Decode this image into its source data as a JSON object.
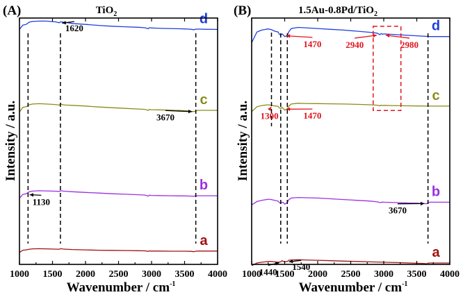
{
  "chart_data": [
    {
      "type": "line",
      "panel": "(A)",
      "title": "TiO2",
      "title_main": "TiO",
      "title_sub": "2",
      "xlabel_main": "Wavenumber / cm",
      "xlabel_sup": "-1",
      "ylabel": "Intensity / a.u.",
      "xlim": [
        1000,
        4000
      ],
      "xticks": [
        "1000",
        "1500",
        "2000",
        "2500",
        "3000",
        "3500",
        "4000"
      ],
      "grid": false,
      "series": [
        {
          "name": "d",
          "color": "#1f3fdc",
          "x": [
            1000,
            1050,
            1100,
            1150,
            1200,
            1300,
            1400,
            1500,
            1550,
            1600,
            1610,
            1620,
            1640,
            1700,
            1800,
            2000,
            2200,
            2400,
            2600,
            2800,
            2900,
            2950,
            2970,
            2990,
            3050,
            3200,
            3400,
            3500,
            3550,
            3600,
            3640,
            3660,
            3700,
            3800,
            4000
          ],
          "y": [
            0.7,
            0.83,
            0.85,
            0.92,
            0.94,
            0.95,
            0.95,
            0.935,
            0.925,
            0.9,
            0.91,
            0.93,
            0.925,
            0.91,
            0.88,
            0.85,
            0.82,
            0.795,
            0.78,
            0.765,
            0.75,
            0.72,
            0.755,
            0.745,
            0.74,
            0.73,
            0.72,
            0.715,
            0.71,
            0.705,
            0.69,
            0.705,
            0.71,
            0.705,
            0.7
          ]
        },
        {
          "name": "c",
          "color": "#8b8b1a",
          "x": [
            1000,
            1050,
            1100,
            1150,
            1200,
            1300,
            1400,
            1500,
            1560,
            1600,
            1630,
            1650,
            1700,
            1800,
            2000,
            2200,
            2400,
            2600,
            2800,
            2900,
            2950,
            2970,
            2990,
            3100,
            3300,
            3450,
            3550,
            3600,
            3640,
            3670,
            3700,
            3800,
            4000
          ],
          "y": [
            0.22,
            0.36,
            0.38,
            0.44,
            0.46,
            0.47,
            0.46,
            0.45,
            0.44,
            0.43,
            0.46,
            0.44,
            0.43,
            0.42,
            0.4,
            0.37,
            0.35,
            0.33,
            0.31,
            0.3,
            0.27,
            0.3,
            0.29,
            0.285,
            0.275,
            0.265,
            0.255,
            0.24,
            0.235,
            0.25,
            0.27,
            0.27,
            0.27
          ]
        },
        {
          "name": "b",
          "color": "#9b30e0",
          "x": [
            1000,
            1050,
            1100,
            1150,
            1200,
            1300,
            1400,
            1500,
            1560,
            1600,
            1630,
            1660,
            1700,
            1800,
            2000,
            2200,
            2400,
            2600,
            2800,
            2900,
            2950,
            2970,
            2990,
            3100,
            3300,
            3500,
            3600,
            3640,
            3670,
            3700,
            3800,
            4000
          ],
          "y": [
            -0.28,
            -0.17,
            -0.15,
            -0.09,
            -0.07,
            -0.06,
            -0.065,
            -0.07,
            -0.075,
            -0.08,
            -0.06,
            -0.07,
            -0.075,
            -0.09,
            -0.11,
            -0.13,
            -0.15,
            -0.165,
            -0.18,
            -0.19,
            -0.22,
            -0.19,
            -0.2,
            -0.205,
            -0.21,
            -0.215,
            -0.22,
            -0.225,
            -0.215,
            -0.21,
            -0.21,
            -0.21
          ]
        },
        {
          "name": "a",
          "color": "#a01010",
          "x": [
            1000,
            1050,
            1100,
            1150,
            1200,
            1300,
            1400,
            1500,
            1560,
            1600,
            1630,
            1660,
            1700,
            1800,
            2000,
            2200,
            2400,
            2600,
            2800,
            2900,
            2950,
            2970,
            2990,
            3100,
            3300,
            3500,
            3600,
            3640,
            3670,
            3700,
            3800,
            4000
          ],
          "y": [
            -0.79,
            -0.72,
            -0.71,
            -0.69,
            -0.68,
            -0.675,
            -0.68,
            -0.685,
            -0.69,
            -0.69,
            -0.675,
            -0.685,
            -0.69,
            -0.7,
            -0.71,
            -0.72,
            -0.725,
            -0.73,
            -0.735,
            -0.74,
            -0.755,
            -0.74,
            -0.745,
            -0.745,
            -0.75,
            -0.75,
            -0.755,
            -0.765,
            -0.75,
            -0.745,
            -0.745,
            -0.745
          ]
        }
      ],
      "dashed_lines_x": [
        1130,
        1620,
        3670
      ],
      "annotations": [
        {
          "text": "1620",
          "color": "#000000",
          "x": 1620,
          "y": 0.9,
          "text_x": 1830,
          "text_y": 0.81
        },
        {
          "text": "3670",
          "color": "#000000",
          "x": 3670,
          "y": 0.245,
          "text_x": 3210,
          "text_y": 0.14
        },
        {
          "text": "1130",
          "color": "#000000",
          "x": 1130,
          "y": -0.16,
          "text_x": 1330,
          "text_y": -0.32
        }
      ]
    },
    {
      "type": "line",
      "panel": "(B)",
      "title": "1.5Au-0.8Pd/TiO2",
      "title_main": "1.5Au-0.8Pd/TiO",
      "title_sub": "2",
      "xlabel_main": "Wavenumber / cm",
      "xlabel_sup": "-1",
      "ylabel": "Intensity / a.u.",
      "xlim": [
        1000,
        4000
      ],
      "xticks": [
        "1000",
        "1500",
        "2000",
        "2500",
        "3000",
        "3500",
        "4000"
      ],
      "grid": false,
      "series": [
        {
          "name": "d",
          "color": "#1f3fdc",
          "x": [
            1000,
            1080,
            1150,
            1250,
            1300,
            1350,
            1400,
            1420,
            1440,
            1460,
            1480,
            1500,
            1540,
            1560,
            1600,
            1700,
            1800,
            2000,
            2200,
            2400,
            2600,
            2800,
            2900,
            2940,
            2960,
            2980,
            3000,
            3100,
            3300,
            3500,
            3700,
            3800,
            4000
          ],
          "y": [
            0.5,
            0.78,
            0.83,
            0.86,
            0.84,
            0.8,
            0.78,
            0.72,
            0.7,
            0.73,
            0.7,
            0.66,
            0.69,
            0.78,
            0.87,
            0.9,
            0.89,
            0.87,
            0.85,
            0.83,
            0.8,
            0.77,
            0.75,
            0.71,
            0.74,
            0.72,
            0.73,
            0.72,
            0.7,
            0.68,
            0.66,
            0.66,
            0.66
          ]
        },
        {
          "name": "c",
          "color": "#8b8b1a",
          "x": [
            1000,
            1080,
            1150,
            1250,
            1300,
            1350,
            1400,
            1420,
            1440,
            1460,
            1480,
            1500,
            1540,
            1560,
            1600,
            1700,
            1800,
            2000,
            2200,
            2400,
            2600,
            2800,
            2900,
            2940,
            2960,
            2980,
            3000,
            3100,
            3300,
            3500,
            3700,
            3800,
            4000
          ],
          "y": [
            0.02,
            0.15,
            0.18,
            0.2,
            0.19,
            0.17,
            0.16,
            0.12,
            0.1,
            0.13,
            0.1,
            0.06,
            0.09,
            0.16,
            0.22,
            0.24,
            0.235,
            0.23,
            0.225,
            0.22,
            0.21,
            0.2,
            0.19,
            0.175,
            0.19,
            0.18,
            0.185,
            0.18,
            0.175,
            0.17,
            0.165,
            0.165,
            0.165
          ]
        },
        {
          "name": "b",
          "color": "#9b30e0",
          "x": [
            1000,
            1080,
            1150,
            1250,
            1300,
            1350,
            1400,
            1420,
            1440,
            1460,
            1480,
            1500,
            1540,
            1560,
            1600,
            1700,
            1800,
            2000,
            2200,
            2400,
            2600,
            2800,
            2900,
            2950,
            2980,
            3000,
            3200,
            3400,
            3500,
            3600,
            3650,
            3670,
            3700,
            3800,
            4000
          ],
          "y": [
            -0.46,
            -0.37,
            -0.34,
            -0.31,
            -0.32,
            -0.34,
            -0.36,
            -0.4,
            -0.42,
            -0.39,
            -0.4,
            -0.44,
            -0.4,
            -0.33,
            -0.28,
            -0.265,
            -0.27,
            -0.28,
            -0.3,
            -0.32,
            -0.34,
            -0.36,
            -0.38,
            -0.4,
            -0.385,
            -0.39,
            -0.4,
            -0.41,
            -0.415,
            -0.425,
            -0.43,
            -0.4,
            -0.39,
            -0.39,
            -0.39
          ]
        },
        {
          "name": "a",
          "color": "#a01010",
          "x": [
            1000,
            1080,
            1150,
            1250,
            1300,
            1350,
            1400,
            1440,
            1460,
            1480,
            1500,
            1540,
            1560,
            1600,
            1700,
            1800,
            2000,
            2200,
            2400,
            2600,
            2800,
            3000,
            3200,
            3400,
            3600,
            3650,
            3670,
            3700,
            3800,
            4000
          ],
          "y": [
            -0.87,
            -0.8,
            -0.78,
            -0.76,
            -0.76,
            -0.77,
            -0.78,
            -0.77,
            -0.74,
            -0.76,
            -0.77,
            -0.76,
            -0.73,
            -0.72,
            -0.715,
            -0.72,
            -0.73,
            -0.74,
            -0.75,
            -0.76,
            -0.77,
            -0.78,
            -0.79,
            -0.8,
            -0.81,
            -0.82,
            -0.805,
            -0.8,
            -0.8,
            -0.8
          ]
        }
      ],
      "dashed_lines_x": [
        1440,
        1540,
        3670
      ],
      "dashed_lines_x_red": [
        1300
      ],
      "dashed_box_red": {
        "x": [
          2840,
          3260
        ],
        "y": [
          0.61,
          0.93
        ]
      },
      "annotations": [
        {
          "text": "1470",
          "color": "#e0141e",
          "x": 1470,
          "y": 0.7,
          "text_x": 1920,
          "text_y": 0.53
        },
        {
          "text": "2940",
          "color": "#e0141e",
          "x": 2940,
          "y": 0.72,
          "text_x": 2560,
          "text_y": 0.51
        },
        {
          "text": "2980",
          "color": "#e0141e",
          "x": 2980,
          "y": 0.72,
          "text_x": 3390,
          "text_y": 0.51
        },
        {
          "text": "1300",
          "color": "#e0141e",
          "x": 1300,
          "y": 0.17,
          "text_x": 1270,
          "text_y": -0.03
        },
        {
          "text": "1470",
          "color": "#e0141e",
          "x": 1470,
          "y": 0.1,
          "text_x": 1920,
          "text_y": -0.02
        },
        {
          "text": "3670",
          "color": "#000000",
          "x": 3670,
          "y": -0.41,
          "text_x": 3210,
          "text_y": -0.54
        },
        {
          "text": "1440",
          "color": "#000000",
          "x": 1440,
          "y": -0.77,
          "text_x": 1250,
          "text_y": -0.97
        },
        {
          "text": "1540",
          "color": "#000000",
          "x": 1540,
          "y": -0.76,
          "text_x": 1750,
          "text_y": -0.84
        }
      ]
    }
  ]
}
